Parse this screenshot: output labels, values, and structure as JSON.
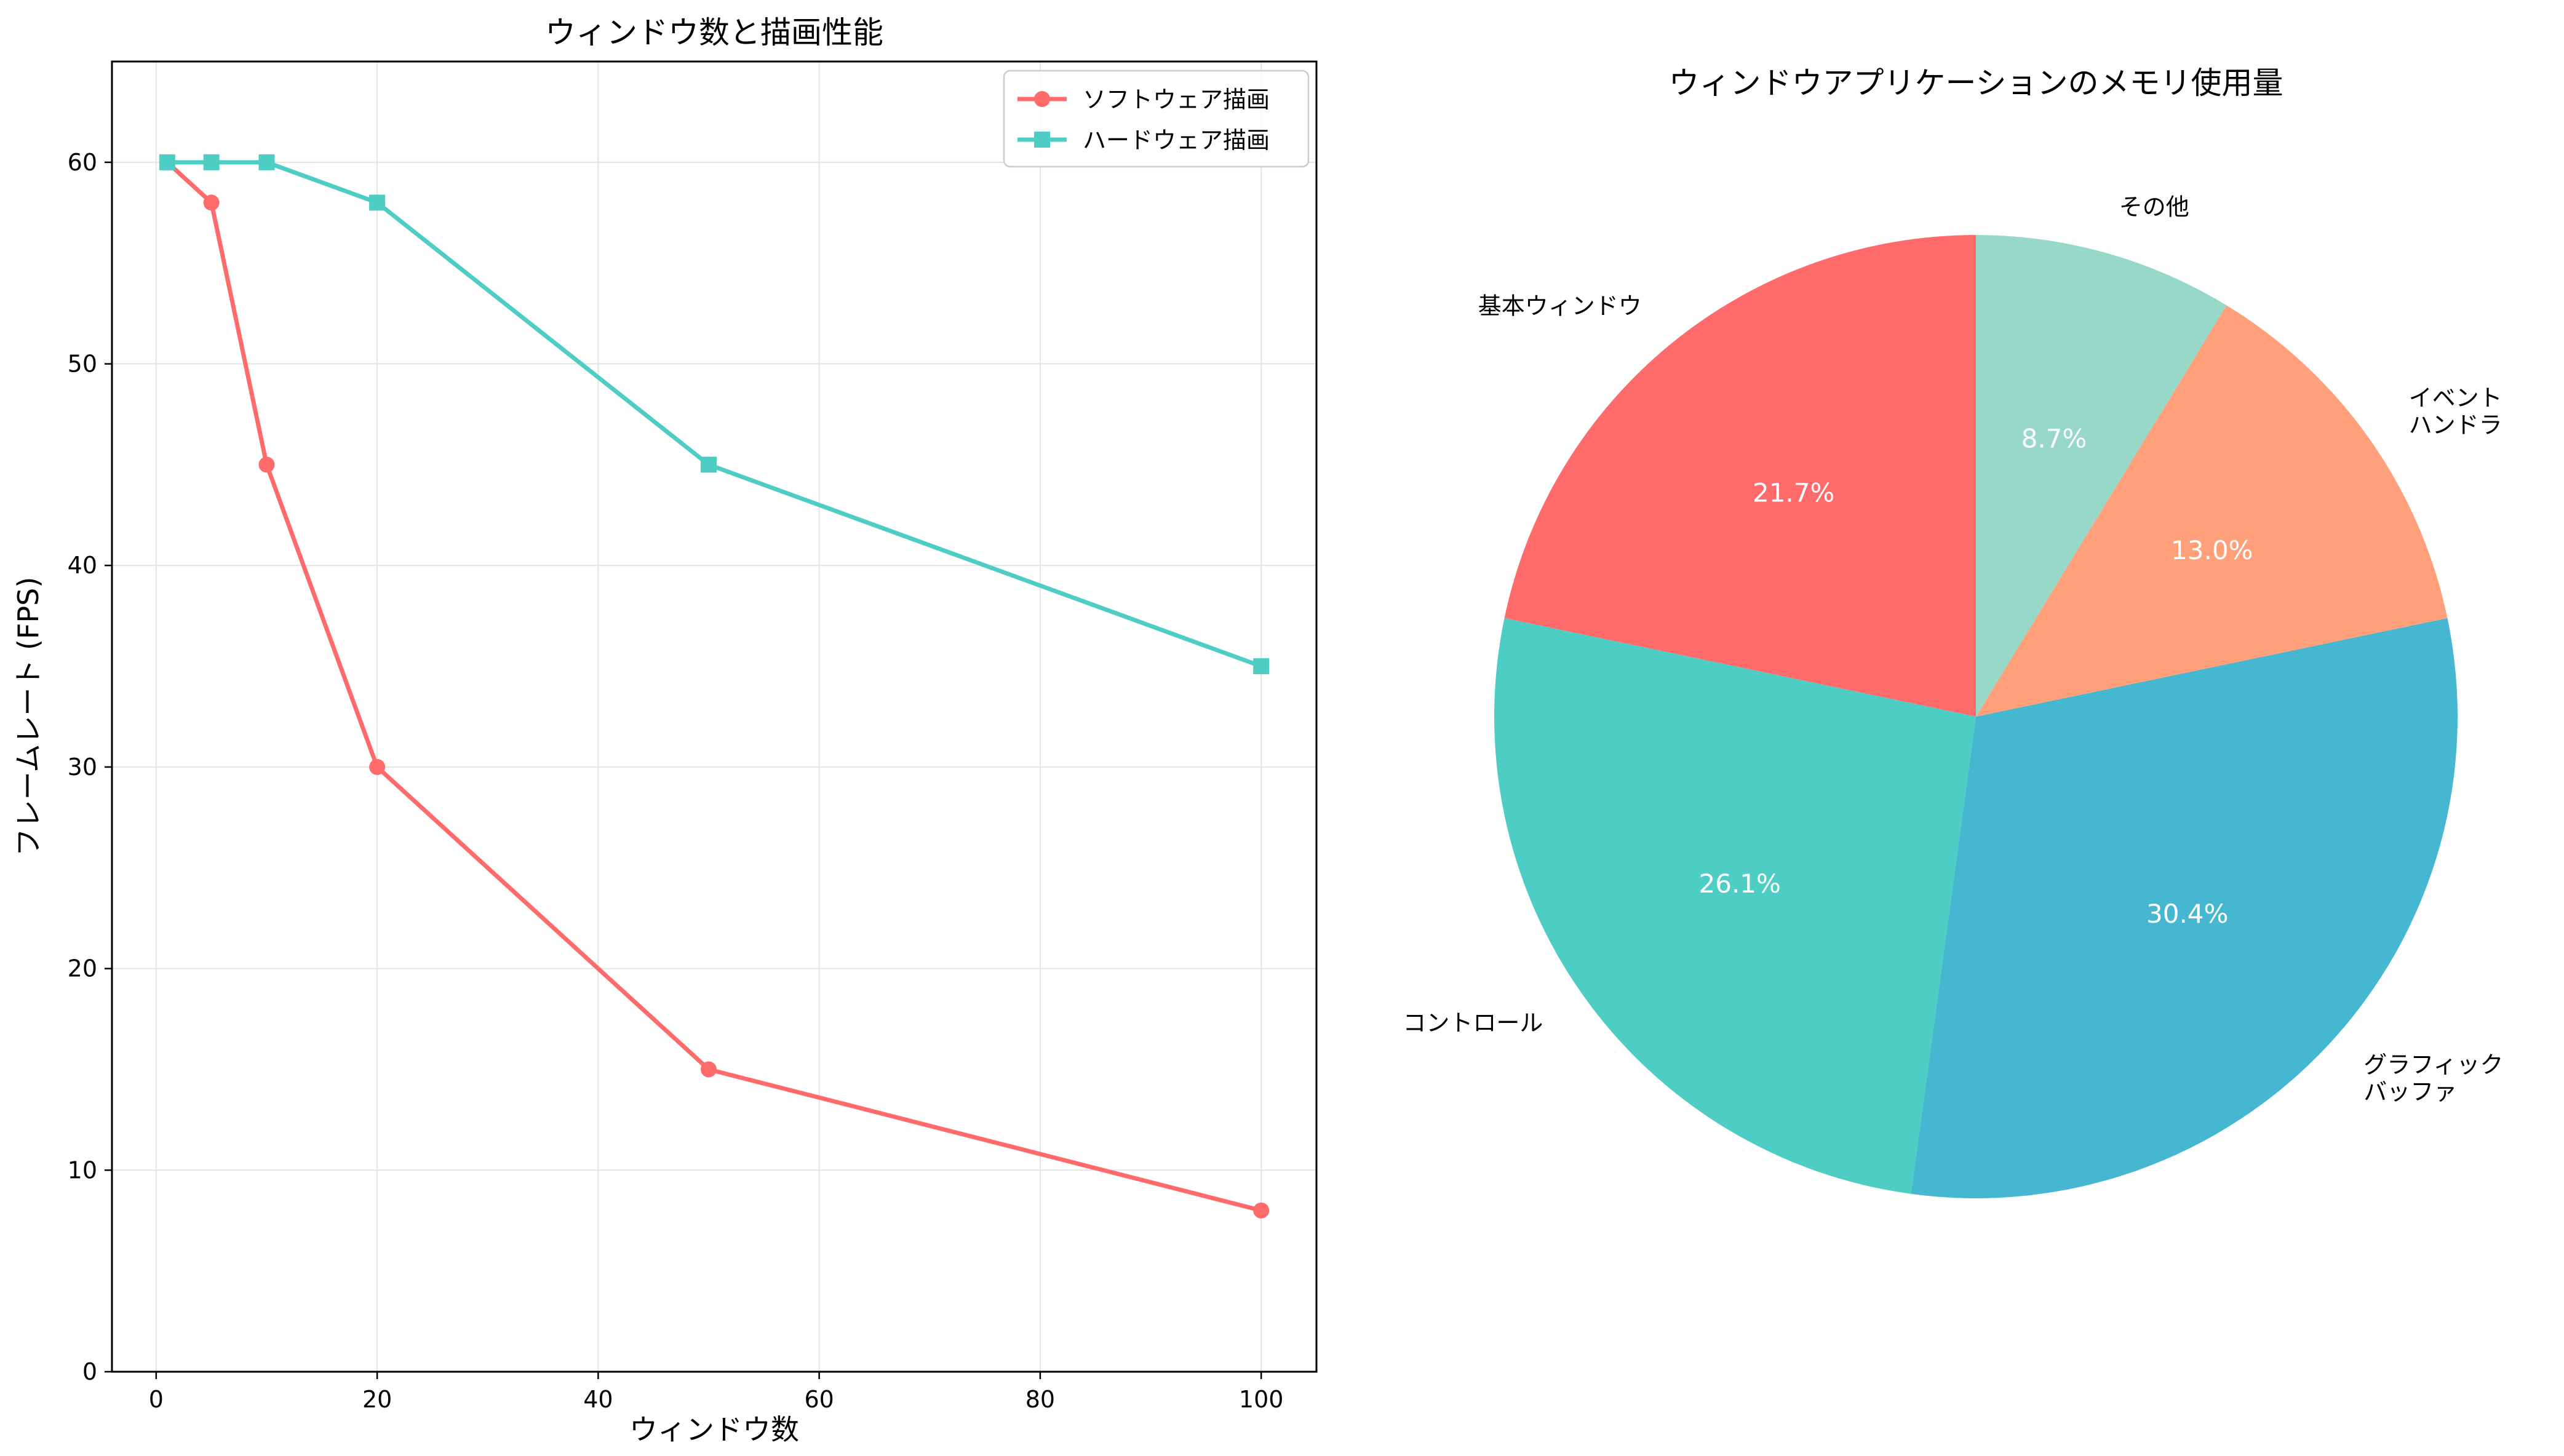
{
  "chart_data": [
    {
      "type": "line",
      "title": "ウィンドウ数と描画性能",
      "xlabel": "ウィンドウ数",
      "ylabel": "フレームレート (FPS)",
      "xlim": [
        -4,
        105
      ],
      "ylim": [
        0,
        65
      ],
      "xticks": [
        0,
        20,
        40,
        60,
        80,
        100
      ],
      "yticks": [
        0,
        10,
        20,
        30,
        40,
        50,
        60
      ],
      "grid": true,
      "legend_position": "top-right",
      "x": [
        1,
        5,
        10,
        20,
        50,
        100
      ],
      "series": [
        {
          "name": "ソフトウェア描画",
          "marker": "circle",
          "color": "#ff6b6b",
          "values": [
            60,
            58,
            45,
            30,
            15,
            8
          ]
        },
        {
          "name": "ハードウェア描画",
          "marker": "square",
          "color": "#4ecdc4",
          "values": [
            60,
            60,
            60,
            58,
            45,
            35
          ]
        }
      ]
    },
    {
      "type": "pie",
      "title": "ウィンドウアプリケーションのメモリ使用量",
      "start_angle_deg": 90,
      "direction": "counterclockwise",
      "slices": [
        {
          "label": "基本ウィンドウ",
          "value": 21.7,
          "pct_label": "21.7%",
          "color": "#ff6b6b"
        },
        {
          "label": "コントロール",
          "value": 26.1,
          "pct_label": "26.1%",
          "color": "#4ecdc4"
        },
        {
          "label": "グラフィック\nバッファ",
          "value": 30.4,
          "pct_label": "30.4%",
          "color": "#45b7d1"
        },
        {
          "label": "イベント\nハンドラ",
          "value": 13.0,
          "pct_label": "13.0%",
          "color": "#ffa07a"
        },
        {
          "label": "その他",
          "value": 8.7,
          "pct_label": "8.7%",
          "color": "#98d8c8"
        }
      ]
    }
  ]
}
